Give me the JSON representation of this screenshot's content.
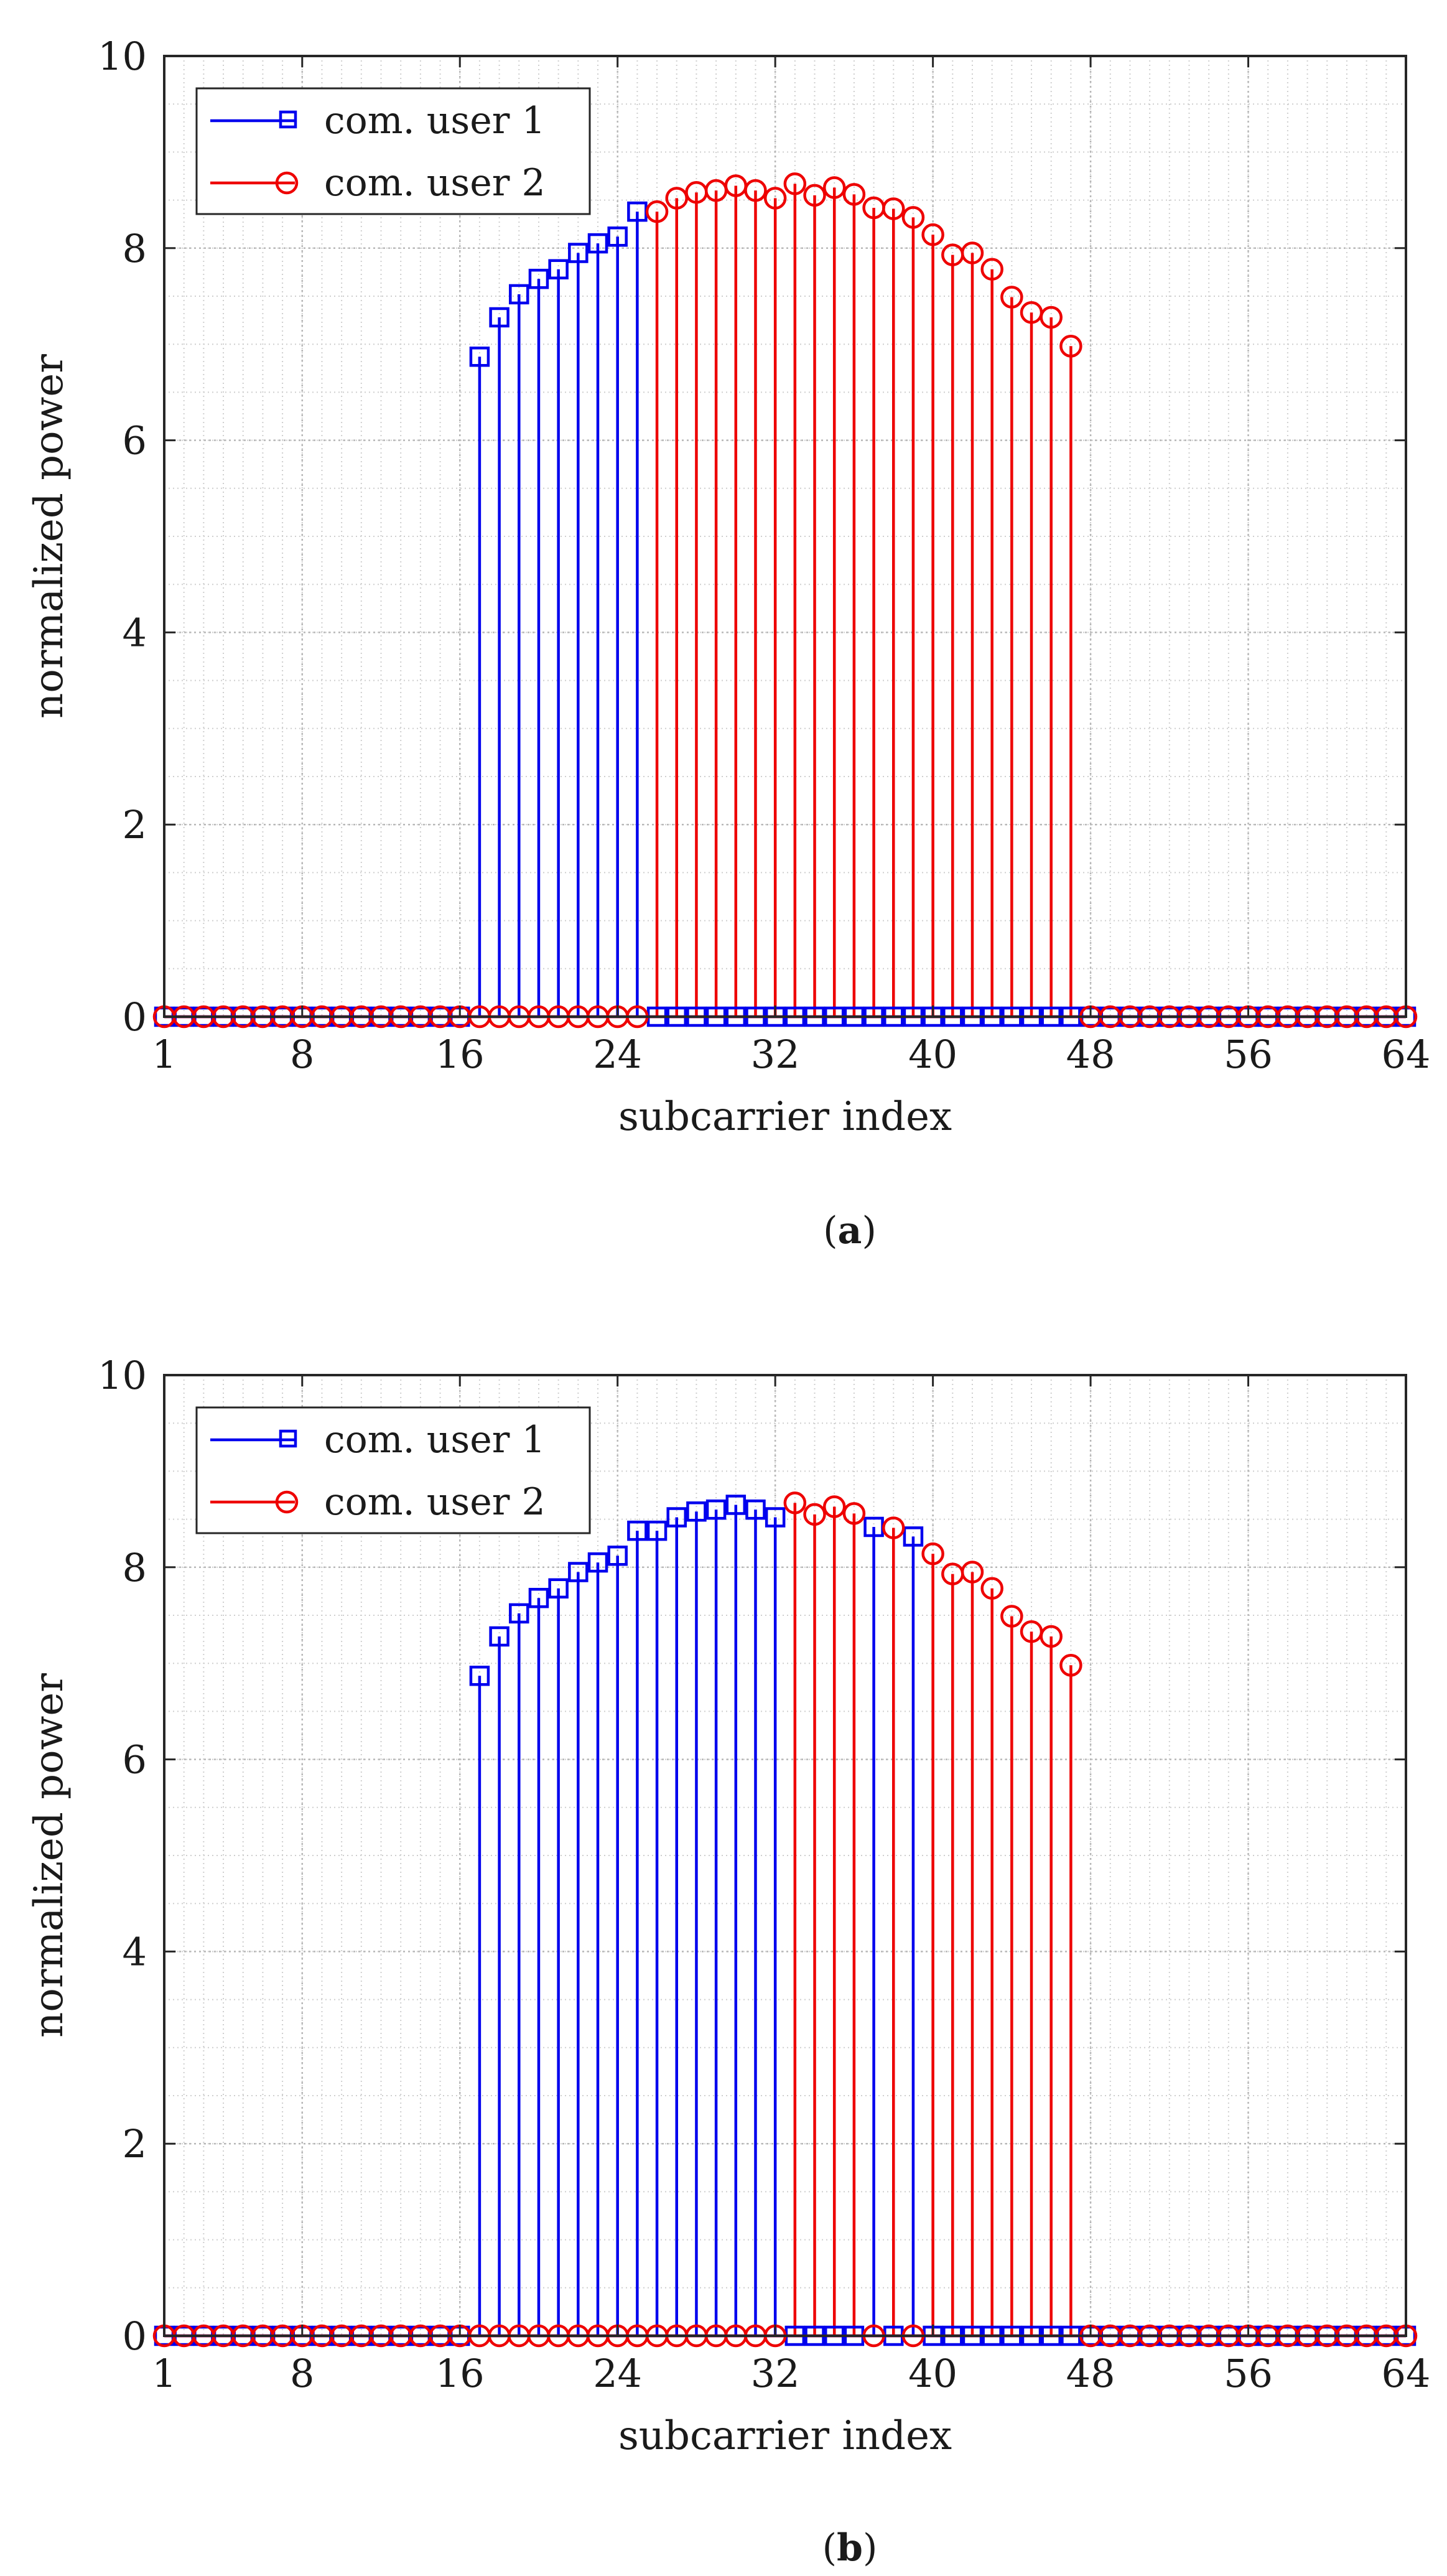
{
  "figure": {
    "panels": [
      {
        "caption_open": "(",
        "caption_letter": "a",
        "caption_close": ")"
      },
      {
        "caption_open": "(",
        "caption_letter": "b",
        "caption_close": ")"
      }
    ]
  },
  "colors": {
    "user1": "#0000ee",
    "user2": "#ee0000",
    "grid": "#cfcfcf",
    "axis": "#262626"
  },
  "icons": {
    "user1_marker": "square-marker-icon",
    "user2_marker": "circle-marker-icon"
  },
  "chart_data": [
    {
      "type": "stem",
      "panel": "a",
      "title": "",
      "xlabel": "subcarrier index",
      "ylabel": "normalized power",
      "xlim": [
        1,
        64
      ],
      "ylim": [
        0,
        10
      ],
      "xticks": [
        1,
        8,
        16,
        24,
        32,
        40,
        48,
        56,
        64
      ],
      "yticks": [
        0,
        2,
        4,
        6,
        8,
        10
      ],
      "grid": true,
      "minor_grid": true,
      "legend_position": "top-left",
      "x": [
        1,
        2,
        3,
        4,
        5,
        6,
        7,
        8,
        9,
        10,
        11,
        12,
        13,
        14,
        15,
        16,
        17,
        18,
        19,
        20,
        21,
        22,
        23,
        24,
        25,
        26,
        27,
        28,
        29,
        30,
        31,
        32,
        33,
        34,
        35,
        36,
        37,
        38,
        39,
        40,
        41,
        42,
        43,
        44,
        45,
        46,
        47,
        48,
        49,
        50,
        51,
        52,
        53,
        54,
        55,
        56,
        57,
        58,
        59,
        60,
        61,
        62,
        63,
        64
      ],
      "series": [
        {
          "name": "com. user 1",
          "marker": "square",
          "values": [
            0,
            0,
            0,
            0,
            0,
            0,
            0,
            0,
            0,
            0,
            0,
            0,
            0,
            0,
            0,
            0,
            6.87,
            7.28,
            7.52,
            7.68,
            7.78,
            7.95,
            8.05,
            8.12,
            8.38,
            0,
            0,
            0,
            0,
            0,
            0,
            0,
            0,
            0,
            0,
            0,
            0,
            0,
            0,
            0,
            0,
            0,
            0,
            0,
            0,
            0,
            0,
            0,
            0,
            0,
            0,
            0,
            0,
            0,
            0,
            0,
            0,
            0,
            0,
            0,
            0,
            0,
            0,
            0
          ]
        },
        {
          "name": "com. user 2",
          "marker": "circle",
          "values": [
            0,
            0,
            0,
            0,
            0,
            0,
            0,
            0,
            0,
            0,
            0,
            0,
            0,
            0,
            0,
            0,
            0,
            0,
            0,
            0,
            0,
            0,
            0,
            0,
            0,
            8.38,
            8.52,
            8.58,
            8.6,
            8.65,
            8.6,
            8.52,
            8.67,
            8.55,
            8.63,
            8.56,
            8.42,
            8.41,
            8.32,
            8.14,
            7.93,
            7.95,
            7.78,
            7.49,
            7.33,
            7.28,
            6.98,
            0,
            0,
            0,
            0,
            0,
            0,
            0,
            0,
            0,
            0,
            0,
            0,
            0,
            0,
            0,
            0,
            0
          ]
        }
      ]
    },
    {
      "type": "stem",
      "panel": "b",
      "title": "",
      "xlabel": "subcarrier index",
      "ylabel": "normalized power",
      "xlim": [
        1,
        64
      ],
      "ylim": [
        0,
        10
      ],
      "xticks": [
        1,
        8,
        16,
        24,
        32,
        40,
        48,
        56,
        64
      ],
      "yticks": [
        0,
        2,
        4,
        6,
        8,
        10
      ],
      "grid": true,
      "minor_grid": true,
      "legend_position": "top-left",
      "x": [
        1,
        2,
        3,
        4,
        5,
        6,
        7,
        8,
        9,
        10,
        11,
        12,
        13,
        14,
        15,
        16,
        17,
        18,
        19,
        20,
        21,
        22,
        23,
        24,
        25,
        26,
        27,
        28,
        29,
        30,
        31,
        32,
        33,
        34,
        35,
        36,
        37,
        38,
        39,
        40,
        41,
        42,
        43,
        44,
        45,
        46,
        47,
        48,
        49,
        50,
        51,
        52,
        53,
        54,
        55,
        56,
        57,
        58,
        59,
        60,
        61,
        62,
        63,
        64
      ],
      "series": [
        {
          "name": "com. user 1",
          "marker": "square",
          "values": [
            0,
            0,
            0,
            0,
            0,
            0,
            0,
            0,
            0,
            0,
            0,
            0,
            0,
            0,
            0,
            0,
            6.87,
            7.28,
            7.52,
            7.68,
            7.78,
            7.95,
            8.05,
            8.12,
            8.38,
            8.38,
            8.52,
            8.58,
            8.6,
            8.65,
            8.6,
            8.52,
            0,
            0,
            0,
            0,
            8.42,
            0,
            8.32,
            0,
            0,
            0,
            0,
            0,
            0,
            0,
            0,
            0,
            0,
            0,
            0,
            0,
            0,
            0,
            0,
            0,
            0,
            0,
            0,
            0,
            0,
            0,
            0,
            0
          ]
        },
        {
          "name": "com. user 2",
          "marker": "circle",
          "values": [
            0,
            0,
            0,
            0,
            0,
            0,
            0,
            0,
            0,
            0,
            0,
            0,
            0,
            0,
            0,
            0,
            0,
            0,
            0,
            0,
            0,
            0,
            0,
            0,
            0,
            0,
            0,
            0,
            0,
            0,
            0,
            0,
            8.67,
            8.55,
            8.63,
            8.56,
            0,
            8.41,
            0,
            8.14,
            7.93,
            7.95,
            7.78,
            7.49,
            7.33,
            7.28,
            6.98,
            0,
            0,
            0,
            0,
            0,
            0,
            0,
            0,
            0,
            0,
            0,
            0,
            0,
            0,
            0,
            0,
            0
          ]
        }
      ]
    }
  ]
}
